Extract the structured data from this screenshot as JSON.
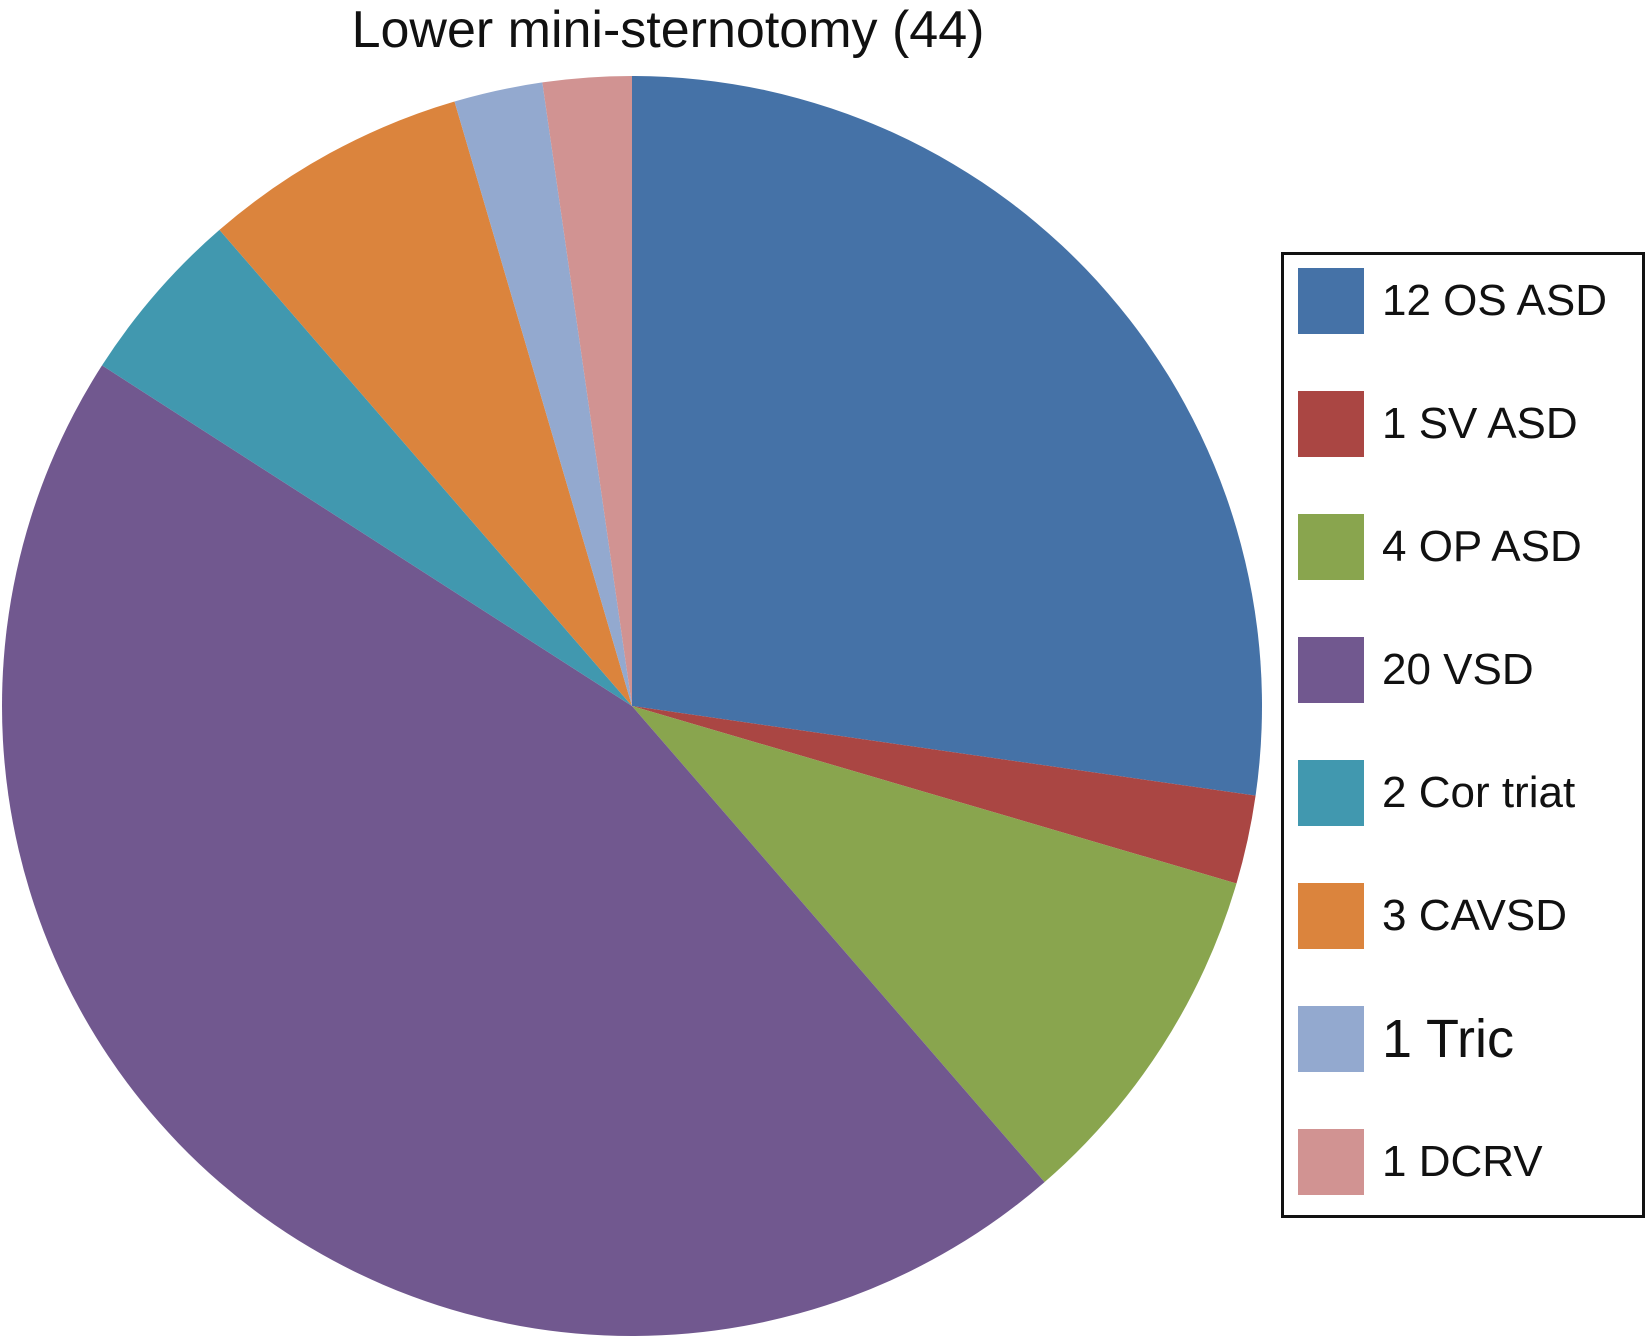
{
  "chart_data": {
    "type": "pie",
    "title": "Lower mini-sternotomy (44)",
    "total": 44,
    "categories": [
      "12 OS ASD",
      "1 SV ASD",
      "4 OP ASD",
      "20 VSD",
      "2 Cor triat",
      "3 CAVSD",
      "1 Tric",
      "1 DCRV"
    ],
    "values": [
      12,
      1,
      4,
      20,
      2,
      3,
      1,
      1
    ],
    "colors": [
      "#4572A7",
      "#AA4643",
      "#89A54E",
      "#71588F",
      "#4198AF",
      "#DB843D",
      "#93A9CF",
      "#D19392"
    ],
    "start_angle": "12 o'clock",
    "direction": "clockwise",
    "legend_position": "right"
  }
}
